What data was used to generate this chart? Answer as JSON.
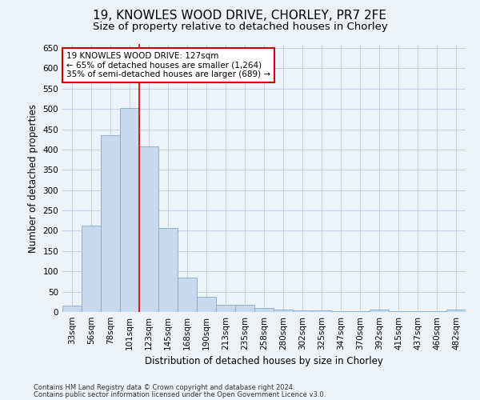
{
  "title": "19, KNOWLES WOOD DRIVE, CHORLEY, PR7 2FE",
  "subtitle": "Size of property relative to detached houses in Chorley",
  "xlabel": "Distribution of detached houses by size in Chorley",
  "ylabel": "Number of detached properties",
  "categories": [
    "33sqm",
    "56sqm",
    "78sqm",
    "101sqm",
    "123sqm",
    "145sqm",
    "168sqm",
    "190sqm",
    "213sqm",
    "235sqm",
    "258sqm",
    "280sqm",
    "302sqm",
    "325sqm",
    "347sqm",
    "370sqm",
    "392sqm",
    "415sqm",
    "437sqm",
    "460sqm",
    "482sqm"
  ],
  "values": [
    15,
    212,
    436,
    503,
    407,
    207,
    85,
    38,
    18,
    18,
    10,
    5,
    4,
    3,
    2,
    2,
    5,
    1,
    1,
    1,
    5
  ],
  "bar_color": "#c8d9ed",
  "bar_edge_color": "#8ab4d4",
  "vline_color": "#cc0000",
  "vline_x_idx": 3.5,
  "annotation_text": "19 KNOWLES WOOD DRIVE: 127sqm\n← 65% of detached houses are smaller (1,264)\n35% of semi-detached houses are larger (689) →",
  "annotation_box_color": "#ffffff",
  "annotation_box_edge_color": "#cc0000",
  "ylim": [
    0,
    660
  ],
  "yticks": [
    0,
    50,
    100,
    150,
    200,
    250,
    300,
    350,
    400,
    450,
    500,
    550,
    600,
    650
  ],
  "footnote1": "Contains HM Land Registry data © Crown copyright and database right 2024.",
  "footnote2": "Contains public sector information licensed under the Open Government Licence v3.0.",
  "bg_color": "#eef2f9",
  "title_fontsize": 11,
  "subtitle_fontsize": 9.5,
  "label_fontsize": 8.5,
  "tick_fontsize": 7.5,
  "footnote_fontsize": 6,
  "annotation_fontsize": 7.5
}
